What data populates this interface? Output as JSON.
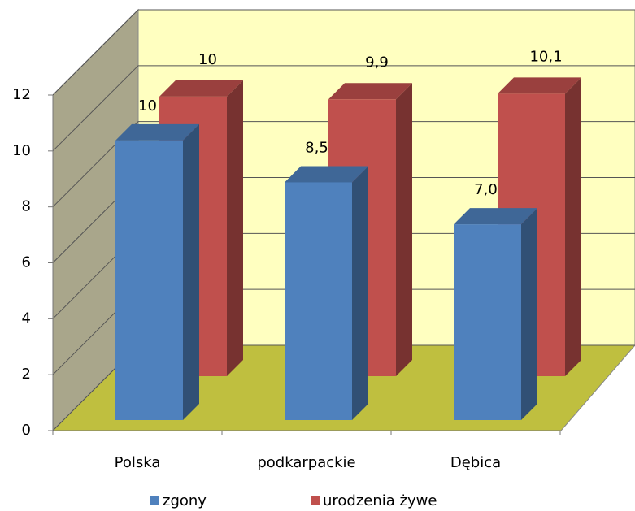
{
  "chart_data": {
    "type": "bar3d",
    "categories": [
      "Polska",
      "podkarpackie",
      "Dębica"
    ],
    "series": [
      {
        "name": "zgony",
        "color": "#4f81bd",
        "values": [
          10,
          8.5,
          7.0
        ],
        "value_labels": [
          "10",
          "8,5",
          "7,0"
        ]
      },
      {
        "name": "urodzenia żywe",
        "color": "#c0504d",
        "values": [
          10,
          9.9,
          10.1
        ],
        "value_labels": [
          "10",
          "9,9",
          "10,1"
        ]
      }
    ],
    "ylim": [
      0,
      12
    ],
    "yticks": [
      0,
      2,
      4,
      6,
      8,
      10,
      12
    ],
    "grid": true,
    "legend": "bottom"
  }
}
